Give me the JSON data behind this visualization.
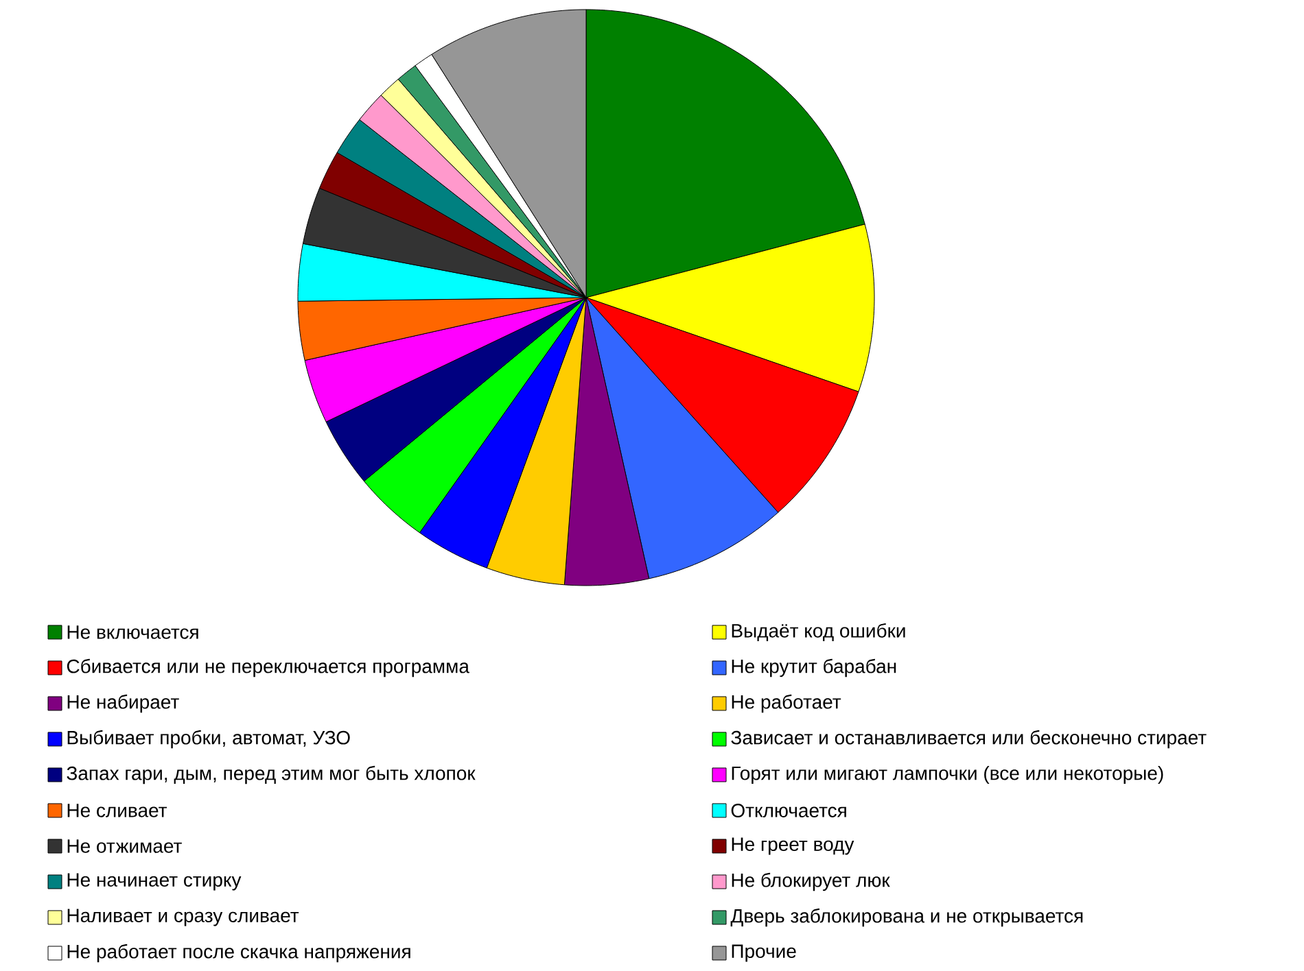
{
  "chart_data": {
    "type": "pie",
    "categories": [
      "Не включается",
      "Выдаёт код ошибки",
      "Сбивается или не переключается программа",
      "Не крутит барабан",
      "Не набирает",
      "Не работает",
      "Выбивает пробки, автомат, УЗО",
      "Зависает и останавливается или бесконечно стирает",
      "Запах гари, дым, перед этим мог быть хлопок",
      "Горят или мигают лампочки (все или некоторые)",
      "Не сливает",
      "Отключается",
      "Не отжимает",
      "Не греет воду",
      "Не начинает стирку",
      "Не блокирует люк",
      "Наливает и сразу сливает",
      "Дверь заблокирована и не открывается",
      "Не работает после скачка напряжения",
      "Прочие"
    ],
    "values": [
      20.9,
      9.4,
      8.1,
      8.1,
      4.7,
      4.4,
      4.2,
      4.2,
      3.9,
      3.6,
      3.3,
      3.2,
      3.2,
      2.2,
      2.2,
      1.8,
      1.3,
      1.2,
      1.1,
      9.0
    ],
    "colors": [
      "#008000",
      "#ffff00",
      "#ff0000",
      "#3366ff",
      "#800080",
      "#ffcc00",
      "#0000ff",
      "#00ff00",
      "#000080",
      "#ff00ff",
      "#ff6600",
      "#00ffff",
      "#333333",
      "#800000",
      "#008080",
      "#ff99cc",
      "#ffff99",
      "#339966",
      "#ffffff",
      "#969696"
    ],
    "legend": "bottom"
  }
}
